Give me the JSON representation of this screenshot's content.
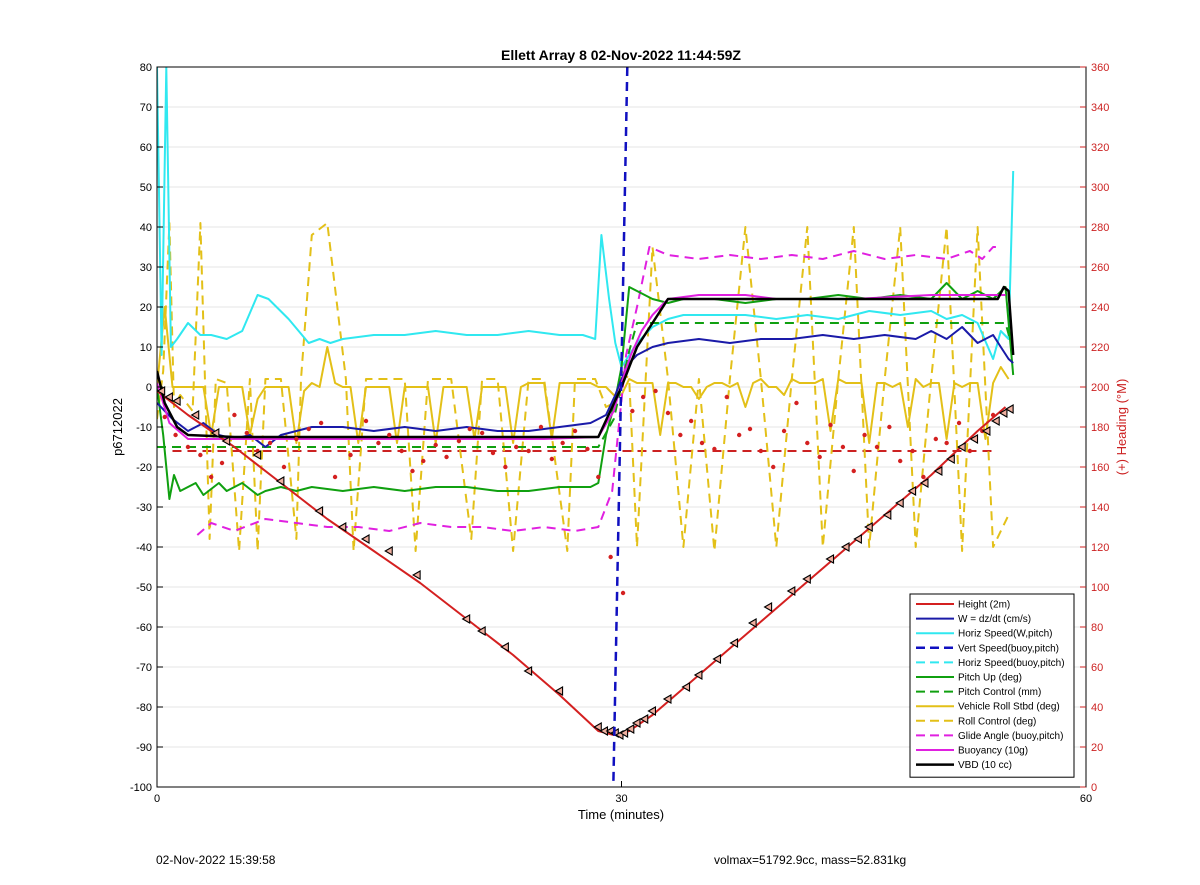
{
  "chart_data": {
    "type": "line",
    "title": "Ellett Array 8 02-Nov-2022 11:44:59Z",
    "xlabel": "Time (minutes)",
    "ylabel_left": "p6712022",
    "ylabel_right": "(+) Heading (°M)",
    "xlim": [
      0,
      60
    ],
    "ylim_left": [
      -100,
      80
    ],
    "ylim_right": [
      0,
      360
    ],
    "x_ticks": [
      0,
      30,
      60
    ],
    "y_ticks_left": [
      80,
      70,
      60,
      50,
      40,
      30,
      20,
      10,
      0,
      -10,
      -20,
      -30,
      -40,
      -50,
      -60,
      -70,
      -80,
      -90,
      -100
    ],
    "y_ticks_right": [
      360,
      340,
      320,
      300,
      280,
      260,
      240,
      220,
      200,
      180,
      160,
      140,
      120,
      100,
      80,
      60,
      40,
      20,
      0
    ],
    "grid": "horizontal",
    "legend_position": "bottom-right",
    "colors": {
      "axis_right": "#cc2222",
      "vert_marker": "#1010c0"
    },
    "vertical_line_x": 29.6,
    "series": [
      {
        "name": "Height (2m)",
        "color": "#d42020",
        "dash": "solid",
        "width": 2,
        "x": [
          0,
          2,
          5,
          8,
          11,
          14,
          17,
          20,
          23,
          26,
          28.5,
          29.5,
          30.5,
          32,
          35,
          38,
          41,
          44,
          47,
          50,
          53,
          54.8
        ],
        "y": [
          -1,
          -7,
          -15,
          -24,
          -33,
          -41,
          -49,
          -58,
          -67,
          -77,
          -86,
          -87,
          -86,
          -82,
          -72,
          -62,
          -52,
          -42,
          -32,
          -22,
          -11,
          -5
        ]
      },
      {
        "name": "W = dz/dt (cm/s)",
        "color": "#1a1aa8",
        "dash": "solid",
        "width": 2,
        "x": [
          0,
          1,
          2,
          3,
          4,
          5,
          6,
          7,
          8,
          9,
          10,
          12,
          14,
          16,
          18,
          20,
          22,
          24,
          26,
          28,
          29,
          29.6,
          30,
          30.5,
          31,
          31.5,
          32,
          33,
          35,
          37,
          39,
          41,
          43,
          45,
          47,
          49,
          50,
          51,
          52,
          53,
          54,
          54.5,
          55,
          55.3
        ],
        "y": [
          -4,
          -8,
          -11,
          -9,
          -12,
          -13,
          -12,
          -15,
          -12,
          -11,
          -10,
          -10,
          -11,
          -10,
          -11,
          -10,
          -11,
          -11,
          -10,
          -9,
          -7,
          -2,
          2,
          6,
          8,
          9,
          10,
          11,
          12,
          11,
          12,
          12,
          13,
          12,
          13,
          12,
          14,
          12,
          15,
          11,
          13,
          10,
          7,
          6
        ]
      },
      {
        "name": "Horiz Speed(W,pitch)",
        "color": "#30e8f0",
        "dash": "solid",
        "width": 2,
        "x": [
          0,
          0.3,
          0.6,
          0.9,
          1.3,
          2,
          2.8,
          3.5,
          4.5,
          5.5,
          6.5,
          7.2,
          8.5,
          9.8,
          10.5,
          11.2,
          12,
          14,
          16,
          18,
          20,
          22,
          24,
          26,
          27.5,
          28.3,
          28.7,
          29.2,
          29.6,
          30,
          30.5,
          31,
          31.5,
          32,
          33,
          34,
          36,
          38,
          40,
          42,
          44,
          46,
          48,
          50,
          51,
          52,
          53,
          54,
          54.5,
          55,
          55.3
        ],
        "y": [
          80,
          8,
          80,
          10,
          12,
          16,
          13,
          13,
          12,
          14,
          23,
          22,
          17,
          11,
          12,
          11,
          12,
          13,
          13,
          14,
          13,
          13,
          14,
          13,
          13,
          12,
          38,
          22,
          11,
          5,
          8,
          11,
          13,
          15,
          17,
          18,
          18,
          18,
          17,
          18,
          17,
          19,
          18,
          19,
          17,
          18,
          16,
          7,
          14,
          12,
          54
        ]
      },
      {
        "name": "Vert Speed(buoy,pitch)",
        "color": "#1010c0",
        "dash": "dashed",
        "width": 2.5,
        "x": [],
        "y": []
      },
      {
        "name": "Horiz Speed(buoy,pitch)",
        "color": "#30e8f0",
        "dash": "dashed",
        "width": 2,
        "x": [],
        "y": []
      },
      {
        "name": "Pitch Up (deg)",
        "color": "#10a010",
        "dash": "solid",
        "width": 2,
        "x": [
          0,
          0.4,
          0.8,
          1.1,
          1.5,
          2.5,
          3,
          4,
          4.5,
          5.5,
          6.5,
          7,
          8,
          9,
          10,
          12,
          14,
          16,
          18,
          20,
          22,
          24,
          26,
          28,
          28.5,
          29,
          29.5,
          30,
          30.5,
          31,
          32,
          33,
          34,
          36,
          38,
          40,
          42,
          44,
          46,
          48,
          50,
          51,
          52,
          53,
          54,
          54.8,
          55.3
        ],
        "y": [
          0,
          -12,
          -28,
          -22,
          -26,
          -24,
          -27,
          -24,
          -26,
          -24,
          -27,
          -26,
          -25,
          -26,
          -25,
          -26,
          -25,
          -26,
          -25,
          -25,
          -26,
          -26,
          -25,
          -25,
          -24,
          -12,
          -5,
          5,
          25,
          24,
          22,
          21,
          22,
          22,
          21,
          22,
          22,
          23,
          22,
          23,
          22,
          26,
          22,
          24,
          22,
          25,
          3
        ]
      },
      {
        "name": "Pitch Control (mm)",
        "color": "#10a010",
        "dash": "dashed",
        "width": 2,
        "x": [
          0,
          2,
          28.5,
          29.5,
          30.5,
          31,
          33,
          54.8,
          55.3
        ],
        "y": [
          -15,
          -15,
          -15,
          -8,
          9,
          16,
          16,
          16,
          9
        ]
      },
      {
        "name": "Vehicle Roll Stbd (deg)",
        "color": "#e3c018",
        "dash": "solid",
        "width": 2,
        "x": [
          0,
          0.5,
          1,
          1.5,
          2,
          2.5,
          3,
          3.5,
          4,
          4.5,
          5,
          5.5,
          6,
          6.5,
          7,
          7.5,
          8,
          8.5,
          9,
          9.5,
          10,
          10.5,
          11,
          11.5,
          12,
          12.5,
          13,
          13.5,
          14,
          14.5,
          15,
          15.5,
          16,
          16.5,
          17,
          17.5,
          18,
          18.5,
          19,
          19.5,
          20,
          20.5,
          21,
          21.5,
          22,
          22.5,
          23,
          23.5,
          24,
          24.5,
          25,
          25.5,
          26,
          26.5,
          27,
          27.5,
          28,
          28.5,
          29,
          29.5,
          30,
          30.5,
          31,
          31.5,
          32,
          32.5,
          33,
          33.5,
          34,
          34.5,
          35,
          35.5,
          36,
          36.5,
          37,
          37.5,
          38,
          38.5,
          39,
          39.5,
          40,
          40.5,
          41,
          41.5,
          42,
          42.5,
          43,
          43.5,
          44,
          44.5,
          45,
          45.5,
          46,
          46.5,
          47,
          47.5,
          48,
          48.5,
          49,
          49.5,
          50,
          50.5,
          51,
          51.5,
          52,
          52.5,
          53,
          53.5,
          54,
          54.5,
          55
        ],
        "y": [
          0,
          20,
          0,
          0,
          0,
          0,
          0,
          -12,
          0,
          0,
          0,
          0,
          -12,
          -3,
          0,
          0,
          0,
          0,
          -14,
          -1,
          1,
          0,
          10,
          1,
          0,
          0,
          -14,
          0,
          0,
          0,
          0,
          -14,
          0,
          0,
          0,
          0,
          -14,
          0,
          0,
          0,
          0,
          -13,
          0,
          0,
          0,
          0,
          -14,
          0,
          1,
          1,
          1,
          -13,
          1,
          1,
          1,
          1,
          1,
          0,
          0,
          -2,
          -2,
          2,
          1,
          1,
          1,
          -12,
          1,
          1,
          0,
          0,
          -3,
          0,
          1,
          1,
          0,
          1,
          -5,
          1,
          2,
          0,
          0,
          -2,
          2,
          1,
          1,
          1,
          2,
          -11,
          2,
          1,
          1,
          1,
          -14,
          1,
          1,
          0,
          1,
          -10,
          2,
          0,
          1,
          1,
          -13,
          1,
          0,
          1,
          1,
          -13,
          1,
          5,
          2
        ]
      },
      {
        "name": "Roll Control (deg)",
        "color": "#e3c018",
        "dash": "dashed",
        "width": 2,
        "x": [
          0,
          0.4,
          0.8,
          1.1,
          1.5,
          2.3,
          2.8,
          3.4,
          3.8,
          4.5,
          5.3,
          6,
          6.5,
          7,
          8,
          9,
          9.3,
          10,
          11,
          12.2,
          12.7,
          13.5,
          16,
          16.7,
          17.5,
          19,
          20.3,
          21,
          22,
          23,
          24,
          25,
          26.5,
          27,
          28.3,
          29,
          29.5,
          30,
          30.5,
          31,
          32,
          33,
          34,
          35,
          36,
          37,
          38,
          39,
          40,
          41,
          42,
          43,
          44,
          45,
          46,
          47,
          48,
          49,
          50,
          51,
          52,
          53,
          54,
          55
        ],
        "y": [
          -8,
          4,
          41,
          -5,
          -2,
          -6,
          41,
          -38,
          2,
          1,
          -41,
          2,
          -41,
          2,
          2,
          -38,
          2,
          38,
          41,
          2,
          -41,
          2,
          2,
          -41,
          2,
          2,
          -38,
          2,
          2,
          -41,
          2,
          2,
          -41,
          2,
          2,
          -5,
          -4,
          4,
          2,
          -40,
          35,
          2,
          -40,
          2,
          -41,
          2,
          40,
          2,
          -40,
          2,
          40,
          -40,
          2,
          40,
          -40,
          2,
          40,
          -40,
          2,
          40,
          -41,
          40,
          -40,
          -32
        ]
      },
      {
        "name": "Glide Angle (buoy,pitch)",
        "color": "#e020e0",
        "dash": "dashed",
        "width": 2,
        "x": [
          2.6,
          3.5,
          5,
          7,
          9,
          11,
          13,
          15,
          17,
          19,
          21,
          23,
          25,
          27,
          28.5,
          29.4,
          30.3,
          31,
          31.8,
          33,
          35,
          37,
          39,
          41,
          43,
          45,
          47,
          49,
          51,
          52.5,
          53.3,
          54,
          54.5
        ],
        "y": [
          -37,
          -34,
          -36,
          -33,
          -34,
          -35,
          -35,
          -36,
          -34,
          -35,
          -35,
          -36,
          -35,
          -36,
          -35,
          -26,
          8,
          20,
          35,
          33,
          32,
          33,
          32,
          33,
          32,
          34,
          32,
          33,
          32,
          34,
          32,
          35,
          35
        ]
      },
      {
        "name": "Buoyancy (10g)",
        "color": "#e020e0",
        "dash": "solid",
        "width": 2,
        "x": [
          0,
          0.8,
          2,
          5,
          10,
          15,
          20,
          25,
          28.5,
          29.5,
          30,
          30.6,
          31.3,
          32,
          33,
          35,
          38,
          40,
          45,
          50,
          54.8
        ],
        "y": [
          1,
          -9,
          -13,
          -13,
          -13,
          -13,
          -13,
          -13,
          -12.5,
          -6,
          1,
          8,
          14,
          18,
          22,
          23,
          23,
          22,
          22,
          23,
          23
        ]
      },
      {
        "name": "VBD (10 cc)",
        "color": "#000000",
        "dash": "solid",
        "width": 2.5,
        "x": [
          0,
          0.5,
          1.3,
          2,
          5,
          10,
          15,
          20,
          25,
          28.5,
          30,
          30.5,
          31,
          32,
          33,
          35,
          40,
          45,
          50,
          54.3,
          54.7,
          55,
          55.3
        ],
        "y": [
          4,
          -4,
          -10,
          -12,
          -12.5,
          -12.5,
          -12.5,
          -12.5,
          -12.5,
          -12.5,
          0,
          5,
          10,
          16,
          22,
          22,
          22,
          22,
          22,
          22,
          25,
          24,
          8
        ]
      }
    ],
    "heading_reference_level": 168,
    "heading_points": {
      "x": [
        0.5,
        1.2,
        2,
        2.8,
        3.5,
        4.2,
        5,
        5.8,
        6.5,
        7.3,
        8.2,
        9,
        9.8,
        10.6,
        11.5,
        12.5,
        13.5,
        14.3,
        15,
        15.8,
        16.5,
        17.2,
        18,
        18.7,
        19.5,
        20.2,
        21,
        21.7,
        22.5,
        23.2,
        24,
        24.8,
        25.5,
        26.2,
        27,
        27.8,
        28.5,
        29.3,
        30.1,
        30.7,
        31.4,
        32.2,
        33,
        33.8,
        34.5,
        35.2,
        36,
        36.8,
        37.6,
        38.3,
        39,
        39.8,
        40.5,
        41.3,
        42,
        42.8,
        43.5,
        44.3,
        45,
        45.7,
        46.5,
        47.3,
        48,
        48.8,
        49.5,
        50.3,
        51,
        51.8,
        52.5,
        53.3,
        54
      ],
      "y": [
        185,
        176,
        170,
        166,
        155,
        162,
        186,
        177,
        168,
        172,
        160,
        174,
        179,
        182,
        155,
        166,
        183,
        172,
        176,
        168,
        158,
        163,
        171,
        165,
        173,
        179,
        177,
        167,
        160,
        170,
        168,
        180,
        164,
        172,
        178,
        169,
        155,
        115,
        97,
        188,
        195,
        198,
        187,
        176,
        183,
        172,
        169,
        195,
        176,
        179,
        168,
        160,
        178,
        192,
        172,
        165,
        181,
        170,
        158,
        176,
        170,
        180,
        163,
        168,
        155,
        174,
        172,
        182,
        168,
        178,
        186
      ]
    },
    "triangle_markers": {
      "x": [
        0.3,
        0.8,
        1.3,
        2.5,
        3.8,
        4.5,
        6.5,
        8,
        10.5,
        12,
        13.5,
        15,
        16.8,
        20,
        21,
        22.5,
        24,
        26,
        28.5,
        28.9,
        29.3,
        29.6,
        29.9,
        30.2,
        30.6,
        31,
        31.5,
        32,
        33,
        34.2,
        35,
        36.2,
        37.3,
        38.5,
        39.5,
        41,
        42,
        43.5,
        44.5,
        45.3,
        46,
        47.2,
        48,
        48.8,
        49.6,
        50.5,
        51.3,
        52,
        52.8,
        53.6,
        54.2,
        54.7,
        55.1
      ],
      "y": [
        -1,
        -2.5,
        -3.5,
        -7,
        -11.5,
        -13.5,
        -17,
        -23.5,
        -31,
        -35,
        -38,
        -41,
        -47,
        -58,
        -61,
        -65,
        -71,
        -76,
        -85,
        -86,
        -86,
        -86.5,
        -87,
        -86.5,
        -85.5,
        -84,
        -83,
        -81,
        -78,
        -75,
        -72,
        -68,
        -64,
        -59,
        -55,
        -51,
        -48,
        -43,
        -40,
        -38,
        -35,
        -32,
        -29,
        -26,
        -24,
        -21,
        -18,
        -15,
        -13,
        -11,
        -8.5,
        -6.5,
        -5.5
      ]
    }
  },
  "footer": {
    "timestamp": "02-Nov-2022 15:39:58",
    "info": "volmax=51792.9cc, mass=52.831kg"
  }
}
